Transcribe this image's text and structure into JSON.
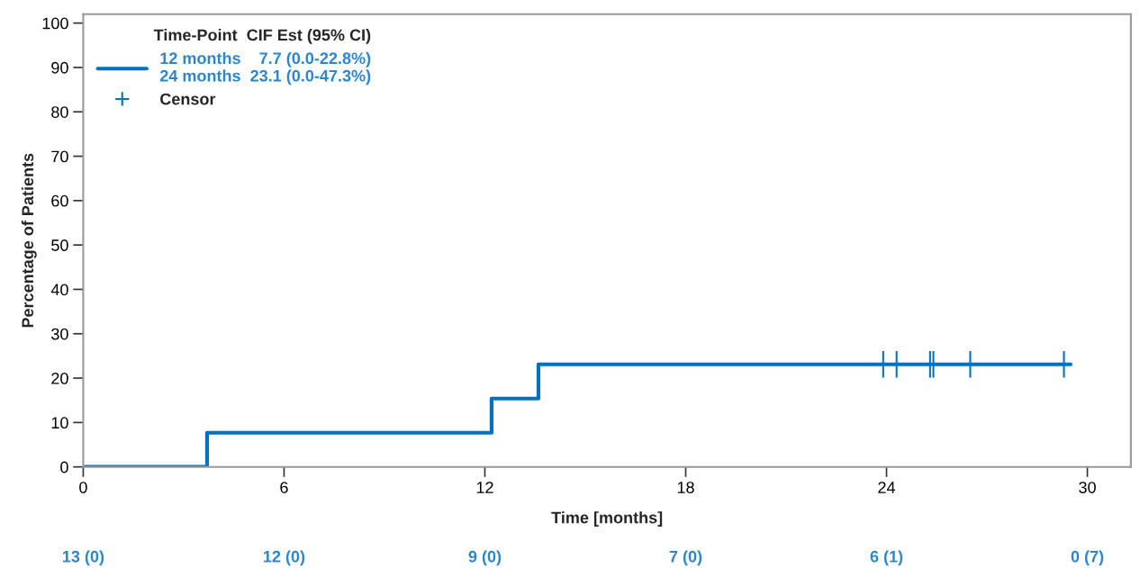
{
  "chart_data": {
    "type": "step",
    "xlabel": "Time [months]",
    "ylabel": "Percentage of Patients",
    "legend_title": "Time-Point  CIF Est (95% CI)",
    "annotations": [
      "12 months    7.7 (0.0-22.8%)",
      "24 months  23.1 (0.0-47.3%)",
      "13 (0)",
      "12 (0)",
      "9 (0)",
      "7 (0)",
      "6 (1)",
      "0 (7)"
    ],
    "series": [
      {
        "color": "#0070c0",
        "x": [
          0,
          3.7,
          12.2,
          13.6,
          29.5
        ],
        "values": [
          0,
          7.7,
          15.4,
          23.1,
          23.1
        ]
      },
      {
        "type": "scatter",
        "name": "Censor",
        "color": "#0070c0",
        "marker": "cross",
        "x": [
          23.9,
          24.3,
          25.3,
          25.4,
          26.5,
          29.3
        ],
        "values": [
          23.1,
          23.1,
          23.1,
          23.1,
          23.1,
          23.1
        ]
      }
    ],
    "xlim": [
      0,
      31.3
    ],
    "ylim": [
      0,
      102
    ],
    "xticks": [
      0,
      6,
      12,
      18,
      24,
      30
    ],
    "yticks": [
      0,
      10,
      20,
      30,
      40,
      50,
      60,
      70,
      80,
      90,
      100
    ],
    "grid": false,
    "legend": "top left"
  }
}
